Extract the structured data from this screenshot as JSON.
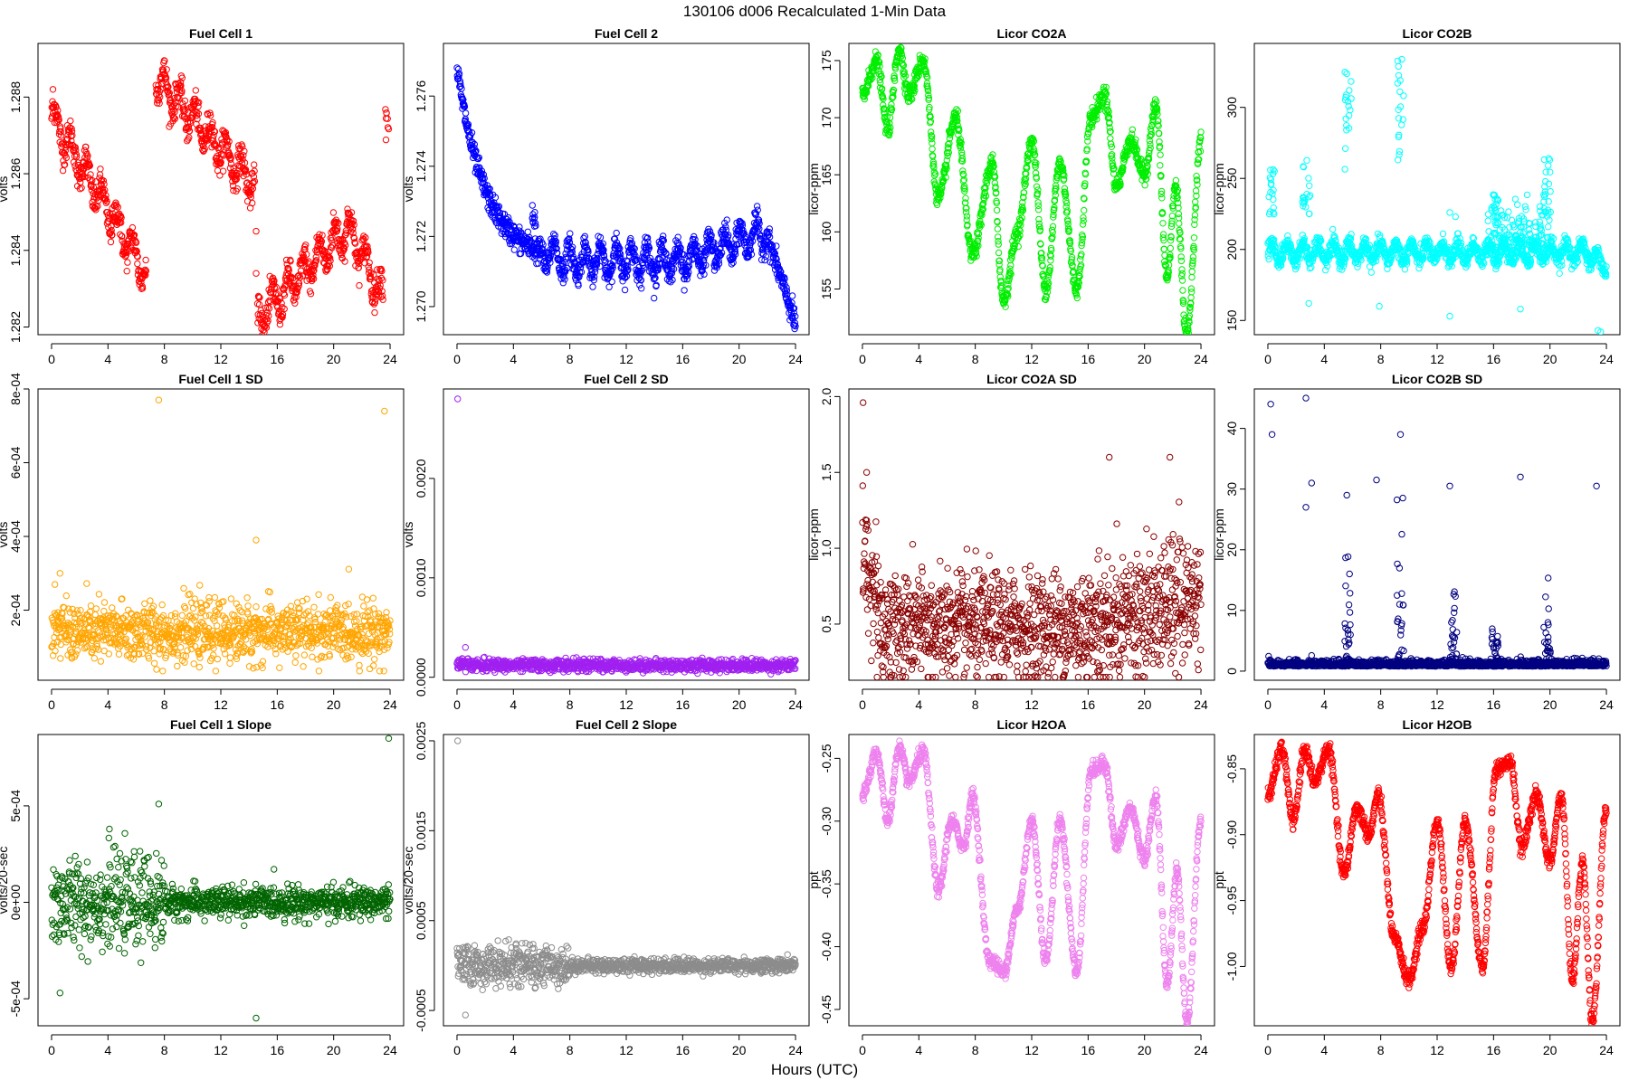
{
  "page": {
    "title": "130106   d006   Recalculated 1-Min Data",
    "xlabel": "Hours (UTC)"
  },
  "chart_data": [
    {
      "type": "scatter",
      "title": "Fuel Cell 1",
      "ylabel": "volts",
      "color": "#ff0000",
      "xlim": [
        -0.96,
        24.96
      ],
      "ylim": [
        1.2818,
        1.2894
      ],
      "xticks": [
        0,
        4,
        8,
        12,
        16,
        20,
        24
      ],
      "xtick_labels": [
        "0",
        "4",
        "8",
        "12",
        "16",
        "20",
        "24"
      ],
      "yticks": [
        1.282,
        1.284,
        1.286,
        1.288
      ],
      "ytick_labels": [
        "1.282",
        "1.284",
        "1.286",
        "1.288"
      ],
      "n": 1100,
      "gen": {
        "kind": "fc1",
        "segments": [
          {
            "x0": 0,
            "x1": 6.7,
            "y0": 1.2875,
            "y1": 1.2834
          },
          {
            "x0": 7.4,
            "x1": 14.4,
            "y0": 1.2885,
            "y1": 1.2857
          },
          {
            "x0": 14.6,
            "x1": 23.5,
            "y0": 1.2822,
            "y1": 1.283
          }
        ],
        "noise": 0.0004,
        "wave_amp": 0.0004
      }
    },
    {
      "type": "scatter",
      "title": "Fuel Cell 2",
      "ylabel": "volts",
      "color": "#0000ff",
      "xlim": [
        -0.96,
        24.96
      ],
      "ylim": [
        1.2692,
        1.2775
      ],
      "xticks": [
        0,
        4,
        8,
        12,
        16,
        20,
        24
      ],
      "xtick_labels": [
        "0",
        "4",
        "8",
        "12",
        "16",
        "20",
        "24"
      ],
      "yticks": [
        1.27,
        1.272,
        1.274,
        1.276
      ],
      "ytick_labels": [
        "1.270",
        "1.272",
        "1.274",
        "1.276"
      ],
      "n": 1200,
      "gen": {
        "kind": "fc2",
        "start": 1.2768,
        "base": 1.2713,
        "end": 1.2695,
        "noise": 0.0003,
        "wave_amp": 0.0004
      }
    },
    {
      "type": "scatter",
      "title": "Licor CO2A",
      "ylabel": "licor-ppm",
      "color": "#00ee00",
      "xlim": [
        -0.96,
        24.96
      ],
      "ylim": [
        151,
        176.5
      ],
      "xticks": [
        0,
        4,
        8,
        12,
        16,
        20,
        24
      ],
      "xtick_labels": [
        "0",
        "4",
        "8",
        "12",
        "16",
        "20",
        "24"
      ],
      "yticks": [
        155,
        160,
        165,
        170,
        175
      ],
      "ytick_labels": [
        "155",
        "160",
        "165",
        "170",
        "175"
      ],
      "n": 1300,
      "gen": {
        "kind": "wave",
        "knots": [
          [
            0,
            172
          ],
          [
            1,
            175
          ],
          [
            1.8,
            169
          ],
          [
            2.6,
            176
          ],
          [
            3.3,
            172
          ],
          [
            4.3,
            175
          ],
          [
            5.4,
            163
          ],
          [
            6.6,
            170
          ],
          [
            7.8,
            158
          ],
          [
            9.2,
            166
          ],
          [
            10,
            154
          ],
          [
            11,
            160
          ],
          [
            12,
            168
          ],
          [
            13,
            155
          ],
          [
            14,
            166
          ],
          [
            15.2,
            155
          ],
          [
            16.2,
            170
          ],
          [
            17.2,
            172
          ],
          [
            18,
            164
          ],
          [
            19,
            168
          ],
          [
            20,
            165
          ],
          [
            20.8,
            171
          ],
          [
            21.6,
            156
          ],
          [
            22.2,
            164
          ],
          [
            23,
            151
          ],
          [
            24,
            168
          ]
        ],
        "noise": 0.4
      }
    },
    {
      "type": "scatter",
      "title": "Licor CO2B",
      "ylabel": "licor-ppm",
      "color": "#00ffff",
      "xlim": [
        -0.96,
        24.96
      ],
      "ylim": [
        140,
        345
      ],
      "xticks": [
        0,
        4,
        8,
        12,
        16,
        20,
        24
      ],
      "xtick_labels": [
        "0",
        "4",
        "8",
        "12",
        "16",
        "20",
        "24"
      ],
      "yticks": [
        150,
        200,
        250,
        300
      ],
      "ytick_labels": [
        "150",
        "200",
        "250",
        "300"
      ],
      "n": 1300,
      "gen": {
        "kind": "co2b",
        "base": 198,
        "spikes": [
          [
            5.7,
            330
          ],
          [
            9.4,
            340
          ],
          [
            0.3,
            263
          ],
          [
            2.7,
            265
          ],
          [
            16.1,
            240
          ],
          [
            19.8,
            265
          ]
        ],
        "noise": 3
      }
    },
    {
      "type": "scatter",
      "title": "Fuel Cell 1 SD",
      "ylabel": "volts",
      "color": "#ffa500",
      "xlim": [
        -0.96,
        24.96
      ],
      "ylim": [
        1e-05,
        0.0008
      ],
      "xticks": [
        0,
        4,
        8,
        12,
        16,
        20,
        24
      ],
      "xtick_labels": [
        "0",
        "4",
        "8",
        "12",
        "16",
        "20",
        "24"
      ],
      "yticks": [
        0.0002,
        0.0004,
        0.0006,
        0.0008
      ],
      "ytick_labels": [
        "2e-04",
        "4e-04",
        "6e-04",
        "8e-04"
      ],
      "n": 1100,
      "gen": {
        "kind": "sd",
        "base": 0.00014,
        "noise": 4e-05,
        "outliers": [
          [
            7.6,
            0.00077
          ],
          [
            23.6,
            0.00074
          ],
          [
            14.5,
            0.00039
          ],
          [
            0.6,
            0.0003
          ]
        ]
      }
    },
    {
      "type": "scatter",
      "title": "Fuel Cell 2 SD",
      "ylabel": "volts",
      "color": "#a020f0",
      "xlim": [
        -0.96,
        24.96
      ],
      "ylim": [
        -3e-05,
        0.0029
      ],
      "xticks": [
        0,
        4,
        8,
        12,
        16,
        20,
        24
      ],
      "xtick_labels": [
        "0",
        "4",
        "8",
        "12",
        "16",
        "20",
        "24"
      ],
      "yticks": [
        0.0,
        0.001,
        0.002
      ],
      "ytick_labels": [
        "0.0000",
        "0.0010",
        "0.0020"
      ],
      "n": 1100,
      "gen": {
        "kind": "sd",
        "base": 0.00012,
        "noise": 3e-05,
        "outliers": [
          [
            0.05,
            0.0028
          ],
          [
            0.6,
            0.0003
          ]
        ]
      }
    },
    {
      "type": "scatter",
      "title": "Licor CO2A SD",
      "ylabel": "licor-ppm",
      "color": "#8b0000",
      "xlim": [
        -0.96,
        24.96
      ],
      "ylim": [
        0.13,
        2.05
      ],
      "xticks": [
        0,
        4,
        8,
        12,
        16,
        20,
        24
      ],
      "xtick_labels": [
        "0",
        "4",
        "8",
        "12",
        "16",
        "20",
        "24"
      ],
      "yticks": [
        0.5,
        1.0,
        1.5,
        2.0
      ],
      "ytick_labels": [
        "0.5",
        "1.0",
        "1.5",
        "2.0"
      ],
      "n": 1300,
      "gen": {
        "kind": "co2asd",
        "outliers": [
          [
            0.05,
            1.96
          ],
          [
            0.3,
            1.5
          ],
          [
            17.5,
            1.6
          ],
          [
            21.8,
            1.6
          ]
        ]
      }
    },
    {
      "type": "scatter",
      "title": "Licor CO2B SD",
      "ylabel": "licor-ppm",
      "color": "#000080",
      "xlim": [
        -0.96,
        24.96
      ],
      "ylim": [
        -1.5,
        46.5
      ],
      "xticks": [
        0,
        4,
        8,
        12,
        16,
        20,
        24
      ],
      "xtick_labels": [
        "0",
        "4",
        "8",
        "12",
        "16",
        "20",
        "24"
      ],
      "yticks": [
        0,
        10,
        20,
        30,
        40
      ],
      "ytick_labels": [
        "0",
        "10",
        "20",
        "30",
        "40"
      ],
      "n": 1300,
      "gen": {
        "kind": "co2bsd",
        "outliers": [
          [
            0.2,
            44
          ],
          [
            0.3,
            39
          ],
          [
            2.7,
            45
          ],
          [
            2.7,
            27
          ],
          [
            3.1,
            31
          ],
          [
            5.6,
            29
          ],
          [
            7.7,
            31.5
          ],
          [
            9.4,
            39
          ],
          [
            12.9,
            30.5
          ],
          [
            17.9,
            32
          ],
          [
            23.3,
            30.5
          ]
        ]
      }
    },
    {
      "type": "scatter",
      "title": "Fuel Cell 1 Slope",
      "ylabel": "volts/20-sec",
      "color": "#006400",
      "xlim": [
        -0.96,
        24.96
      ],
      "ylim": [
        -0.00064,
        0.00087
      ],
      "xticks": [
        0,
        4,
        8,
        12,
        16,
        20,
        24
      ],
      "xtick_labels": [
        "0",
        "4",
        "8",
        "12",
        "16",
        "20",
        "24"
      ],
      "yticks": [
        -0.0005,
        0,
        0.0005
      ],
      "ytick_labels": [
        "-5e-04",
        "0e+00",
        "5e-04"
      ],
      "n": 1100,
      "gen": {
        "kind": "slope",
        "noise": 8e-05,
        "outliers": [
          [
            23.9,
            0.00085
          ],
          [
            7.6,
            0.00051
          ],
          [
            4.1,
            0.00038
          ],
          [
            0.6,
            -0.00047
          ],
          [
            14.5,
            -0.0006
          ]
        ]
      }
    },
    {
      "type": "scatter",
      "title": "Fuel Cell 2 Slope",
      "ylabel": "volts/20-sec",
      "color": "#8c8c8c",
      "xlim": [
        -0.96,
        24.96
      ],
      "ylim": [
        -0.00067,
        0.00257
      ],
      "xticks": [
        0,
        4,
        8,
        12,
        16,
        20,
        24
      ],
      "xtick_labels": [
        "0",
        "4",
        "8",
        "12",
        "16",
        "20",
        "24"
      ],
      "yticks": [
        -0.0005,
        0.0005,
        0.0015,
        0.0025
      ],
      "ytick_labels": [
        "-0.0005",
        "0.0005",
        "0.0015",
        "0.0025"
      ],
      "n": 1100,
      "gen": {
        "kind": "slope",
        "noise": 8e-05,
        "outliers": [
          [
            0.05,
            0.0025
          ],
          [
            4.2,
            0.00019
          ],
          [
            0.6,
            -0.00055
          ]
        ]
      }
    },
    {
      "type": "scatter",
      "title": "Licor H2OA",
      "ylabel": "ppt",
      "color": "#ee82ee",
      "xlim": [
        -0.96,
        24.96
      ],
      "ylim": [
        -0.463,
        -0.231
      ],
      "xticks": [
        0,
        4,
        8,
        12,
        16,
        20,
        24
      ],
      "xtick_labels": [
        "0",
        "4",
        "8",
        "12",
        "16",
        "20",
        "24"
      ],
      "yticks": [
        -0.45,
        -0.4,
        -0.35,
        -0.3,
        -0.25
      ],
      "ytick_labels": [
        "-0.45",
        "-0.40",
        "-0.35",
        "-0.30",
        "-0.25"
      ],
      "n": 1300,
      "gen": {
        "kind": "wave",
        "knots": [
          [
            0,
            -0.28
          ],
          [
            1,
            -0.245
          ],
          [
            1.8,
            -0.3
          ],
          [
            2.6,
            -0.242
          ],
          [
            3.3,
            -0.268
          ],
          [
            4.3,
            -0.245
          ],
          [
            5.4,
            -0.355
          ],
          [
            6.3,
            -0.3
          ],
          [
            7.2,
            -0.32
          ],
          [
            7.8,
            -0.28
          ],
          [
            9,
            -0.41
          ],
          [
            10,
            -0.42
          ],
          [
            11,
            -0.37
          ],
          [
            12,
            -0.3
          ],
          [
            13,
            -0.41
          ],
          [
            14,
            -0.3
          ],
          [
            15.2,
            -0.42
          ],
          [
            16.2,
            -0.26
          ],
          [
            17.2,
            -0.255
          ],
          [
            18,
            -0.32
          ],
          [
            19,
            -0.29
          ],
          [
            20,
            -0.33
          ],
          [
            20.8,
            -0.28
          ],
          [
            21.6,
            -0.43
          ],
          [
            22.3,
            -0.34
          ],
          [
            23,
            -0.46
          ],
          [
            24,
            -0.3
          ]
        ],
        "noise": 0.003
      }
    },
    {
      "type": "scatter",
      "title": "Licor H2OB",
      "ylabel": "ppt",
      "color": "#ff0000",
      "xlim": [
        -0.96,
        24.96
      ],
      "ylim": [
        -1.045,
        -0.824
      ],
      "xticks": [
        0,
        4,
        8,
        12,
        16,
        20,
        24
      ],
      "xtick_labels": [
        "0",
        "4",
        "8",
        "12",
        "16",
        "20",
        "24"
      ],
      "yticks": [
        -1.0,
        -0.95,
        -0.9,
        -0.85
      ],
      "ytick_labels": [
        "-1.00",
        "-0.95",
        "-0.90",
        "-0.85"
      ],
      "n": 1300,
      "gen": {
        "kind": "wave",
        "knots": [
          [
            0,
            -0.87
          ],
          [
            1,
            -0.835
          ],
          [
            1.8,
            -0.89
          ],
          [
            2.6,
            -0.835
          ],
          [
            3.3,
            -0.86
          ],
          [
            4.3,
            -0.835
          ],
          [
            5.4,
            -0.93
          ],
          [
            6.3,
            -0.88
          ],
          [
            7.2,
            -0.9
          ],
          [
            7.8,
            -0.87
          ],
          [
            9,
            -0.98
          ],
          [
            10,
            -1.01
          ],
          [
            11,
            -0.97
          ],
          [
            12,
            -0.89
          ],
          [
            13,
            -1.0
          ],
          [
            14,
            -0.89
          ],
          [
            15.2,
            -1.0
          ],
          [
            16.2,
            -0.85
          ],
          [
            17.2,
            -0.845
          ],
          [
            18,
            -0.91
          ],
          [
            19,
            -0.87
          ],
          [
            20,
            -0.92
          ],
          [
            20.8,
            -0.87
          ],
          [
            21.6,
            -1.01
          ],
          [
            22.3,
            -0.92
          ],
          [
            23,
            -1.04
          ],
          [
            24,
            -0.88
          ]
        ],
        "noise": 0.003
      }
    }
  ]
}
